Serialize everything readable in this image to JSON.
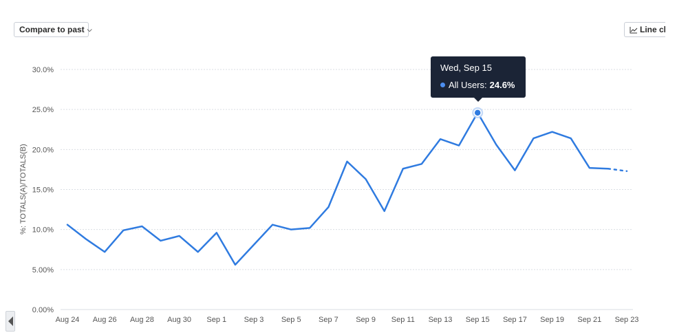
{
  "toolbar": {
    "compare_label": "Compare to past",
    "linechart_label": "Line ch"
  },
  "tooltip": {
    "date": "Wed, Sep 15",
    "series": "All Users:",
    "value": "24.6%"
  },
  "colors": {
    "line": "#2f7be0",
    "tooltip_bg": "#1b2436",
    "grid": "#d9dde3"
  },
  "chart_data": {
    "type": "line",
    "ylabel": "%: TOTALS(A)/TOTALS(B)",
    "ylim": [
      0,
      30
    ],
    "yticks": [
      "0.00%",
      "5.00%",
      "10.0%",
      "15.0%",
      "20.0%",
      "25.0%",
      "30.0%"
    ],
    "xtick_labels": [
      "Aug 24",
      "Aug 26",
      "Aug 28",
      "Aug 30",
      "Sep 1",
      "Sep 3",
      "Sep 5",
      "Sep 7",
      "Sep 9",
      "Sep 11",
      "Sep 13",
      "Sep 15",
      "Sep 17",
      "Sep 19",
      "Sep 21",
      "Sep 23"
    ],
    "grid": true,
    "series": [
      {
        "name": "All Users",
        "x": [
          "Aug 24",
          "Aug 25",
          "Aug 26",
          "Aug 27",
          "Aug 28",
          "Aug 29",
          "Aug 30",
          "Aug 31",
          "Sep 1",
          "Sep 2",
          "Sep 3",
          "Sep 4",
          "Sep 5",
          "Sep 6",
          "Sep 7",
          "Sep 8",
          "Sep 9",
          "Sep 10",
          "Sep 11",
          "Sep 12",
          "Sep 13",
          "Sep 14",
          "Sep 15",
          "Sep 16",
          "Sep 17",
          "Sep 18",
          "Sep 19",
          "Sep 20",
          "Sep 21",
          "Sep 22",
          "Sep 23"
        ],
        "values": [
          10.6,
          8.8,
          7.2,
          9.9,
          10.4,
          8.6,
          9.2,
          7.2,
          9.6,
          5.6,
          8.1,
          10.6,
          10.0,
          10.2,
          12.8,
          18.5,
          16.3,
          12.3,
          17.6,
          18.2,
          21.3,
          20.5,
          24.6,
          20.6,
          17.4,
          21.4,
          22.2,
          21.4,
          17.7,
          17.6,
          17.3
        ]
      }
    ],
    "highlight": {
      "x": "Sep 15",
      "value": 24.6
    },
    "incomplete_from": "Sep 22"
  }
}
